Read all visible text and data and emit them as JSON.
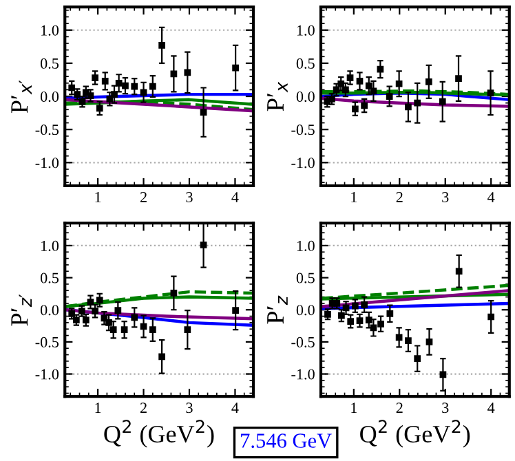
{
  "chart_data": [
    {
      "type": "scatter",
      "ylabel": "P′$_{x′}$",
      "xlim": [
        0.28,
        4.4
      ],
      "ylim": [
        -1.35,
        1.35
      ],
      "xticks": [
        1,
        2,
        3,
        4
      ],
      "yticks": [
        {
          "value": 1,
          "label": "1.0"
        },
        {
          "value": 0.5,
          "label": "0.5"
        },
        {
          "value": 0,
          "label": "0.0"
        },
        {
          "value": -0.5,
          "label": "-0.5"
        },
        {
          "value": -1,
          "label": "-1.0"
        }
      ],
      "ref_lines": [
        {
          "axis": "y",
          "value": 1,
          "color": "#aaaaaa",
          "line_style": "dotted"
        },
        {
          "axis": "y",
          "value": -1,
          "color": "#aaaaaa",
          "line_style": "dotted"
        }
      ],
      "series": [
        {
          "type": "line",
          "color": "#0000ff",
          "line_style": "solid",
          "x": [
            0.3,
            1,
            2,
            3,
            4.4
          ],
          "values": [
            -0.03,
            -0.01,
            0.01,
            0.03,
            0.03
          ]
        },
        {
          "type": "line",
          "color": "#008000",
          "line_style": "solid",
          "x": [
            0.3,
            1,
            2,
            3,
            4.4
          ],
          "values": [
            -0.12,
            -0.1,
            -0.07,
            -0.05,
            -0.12
          ]
        },
        {
          "type": "line",
          "color": "#008000",
          "line_style": "dashed",
          "x": [
            0.3,
            1,
            2,
            3,
            4.4
          ],
          "values": [
            -0.1,
            -0.09,
            -0.08,
            -0.12,
            -0.2
          ]
        },
        {
          "type": "line",
          "color": "#800080",
          "line_style": "solid",
          "x": [
            0.3,
            1,
            2,
            3,
            4.4
          ],
          "values": [
            -0.05,
            -0.08,
            -0.12,
            -0.16,
            -0.22
          ]
        },
        {
          "color": "#000000",
          "marker": "square",
          "x": [
            0.43,
            0.55,
            0.66,
            0.74,
            0.84,
            0.94,
            1.04,
            1.16,
            1.26,
            1.36,
            1.46,
            1.6,
            1.8,
            2.0,
            2.2,
            2.4,
            2.66,
            2.96,
            3.31,
            4.01
          ],
          "values": [
            0.13,
            0.03,
            -0.08,
            0.06,
            0.01,
            0.28,
            -0.18,
            0.23,
            -0.04,
            0.03,
            0.2,
            0.16,
            0.15,
            0.06,
            0.15,
            0.77,
            0.34,
            0.36,
            -0.24,
            0.43
          ],
          "errors": [
            0.1,
            0.08,
            0.08,
            0.09,
            0.09,
            0.1,
            0.1,
            0.13,
            0.1,
            0.13,
            0.13,
            0.12,
            0.12,
            0.15,
            0.16,
            0.27,
            0.27,
            0.31,
            0.37,
            0.34
          ]
        }
      ]
    },
    {
      "type": "scatter",
      "ylabel": "P′$_{x}$",
      "xlim": [
        0.28,
        4.4
      ],
      "ylim": [
        -1.35,
        1.35
      ],
      "xticks": [
        1,
        2,
        3,
        4
      ],
      "yticks": [
        {
          "value": 1,
          "label": "1.0"
        },
        {
          "value": 0.5,
          "label": "0.5"
        },
        {
          "value": 0,
          "label": "0.0"
        },
        {
          "value": -0.5,
          "label": "-0.5"
        },
        {
          "value": -1,
          "label": "-1.0"
        }
      ],
      "ref_lines": [
        {
          "axis": "y",
          "value": 1,
          "color": "#aaaaaa",
          "line_style": "dotted"
        },
        {
          "axis": "y",
          "value": -1,
          "color": "#aaaaaa",
          "line_style": "dotted"
        }
      ],
      "series": [
        {
          "type": "line",
          "color": "#0000ff",
          "line_style": "solid",
          "x": [
            0.3,
            1,
            2,
            3,
            3.5,
            4.4
          ],
          "values": [
            0.0,
            0.03,
            0.05,
            0.03,
            0.0,
            -0.05
          ]
        },
        {
          "type": "line",
          "color": "#008000",
          "line_style": "solid",
          "x": [
            0.3,
            1,
            2,
            2.5,
            3.5,
            4.4
          ],
          "values": [
            0.05,
            0.05,
            0.06,
            0.06,
            0.04,
            0.02
          ]
        },
        {
          "type": "line",
          "color": "#008000",
          "line_style": "dashed",
          "x": [
            0.3,
            1,
            2,
            2.5,
            3.5,
            4.4
          ],
          "values": [
            0.07,
            0.07,
            0.08,
            0.08,
            0.06,
            0.03
          ]
        },
        {
          "type": "line",
          "color": "#800080",
          "line_style": "solid",
          "x": [
            0.3,
            1,
            2,
            3,
            4.4
          ],
          "values": [
            -0.03,
            -0.07,
            -0.1,
            -0.13,
            -0.15
          ]
        },
        {
          "color": "#000000",
          "marker": "square",
          "x": [
            0.42,
            0.52,
            0.62,
            0.72,
            0.82,
            0.92,
            1.03,
            1.13,
            1.23,
            1.33,
            1.43,
            1.58,
            1.78,
            1.99,
            2.19,
            2.39,
            2.64,
            2.94,
            3.29,
            3.99
          ],
          "values": [
            -0.08,
            -0.04,
            0.1,
            0.19,
            0.1,
            0.28,
            -0.19,
            0.23,
            -0.14,
            0.16,
            0.08,
            0.41,
            0.0,
            0.19,
            -0.16,
            -0.1,
            0.22,
            -0.08,
            0.27,
            0.05
          ],
          "errors": [
            0.08,
            0.08,
            0.09,
            0.1,
            0.1,
            0.1,
            0.1,
            0.13,
            0.1,
            0.13,
            0.15,
            0.13,
            0.15,
            0.19,
            0.22,
            0.3,
            0.25,
            0.3,
            0.34,
            0.33
          ]
        }
      ]
    },
    {
      "type": "scatter",
      "ylabel": "P′$_{z′}$",
      "xlabel": "Q$^{2}$ (GeV$^{2}$)",
      "annotations": [
        "7.546 GeV"
      ],
      "xlim": [
        0.28,
        4.4
      ],
      "ylim": [
        -1.35,
        1.35
      ],
      "xticks": [
        1,
        2,
        3,
        4
      ],
      "yticks": [
        {
          "value": 1,
          "label": "1.0"
        },
        {
          "value": 0.5,
          "label": "0.5"
        },
        {
          "value": 0,
          "label": "0.0"
        },
        {
          "value": -0.5,
          "label": "-0.5"
        },
        {
          "value": -1,
          "label": "-1.0"
        }
      ],
      "ref_lines": [
        {
          "axis": "y",
          "value": 1,
          "color": "#aaaaaa",
          "line_style": "dotted"
        },
        {
          "axis": "y",
          "value": -1,
          "color": "#aaaaaa",
          "line_style": "dotted"
        }
      ],
      "series": [
        {
          "type": "line",
          "color": "#0000ff",
          "line_style": "solid",
          "x": [
            0.3,
            1,
            2,
            3,
            4.4
          ],
          "values": [
            0.0,
            -0.05,
            -0.12,
            -0.2,
            -0.24
          ]
        },
        {
          "type": "line",
          "color": "#008000",
          "line_style": "solid",
          "x": [
            0.3,
            1,
            2,
            3,
            4.4
          ],
          "values": [
            0.05,
            0.1,
            0.18,
            0.2,
            0.18
          ]
        },
        {
          "type": "line",
          "color": "#008000",
          "line_style": "dashed",
          "x": [
            0.3,
            1,
            2,
            3,
            4.4
          ],
          "values": [
            0.05,
            0.12,
            0.2,
            0.28,
            0.26
          ]
        },
        {
          "type": "line",
          "color": "#800080",
          "line_style": "solid",
          "x": [
            0.3,
            1,
            2.5,
            4.4
          ],
          "values": [
            0.0,
            -0.05,
            -0.1,
            -0.14
          ]
        },
        {
          "color": "#000000",
          "marker": "square",
          "x": [
            0.43,
            0.53,
            0.65,
            0.74,
            0.84,
            0.94,
            1.04,
            1.14,
            1.24,
            1.34,
            1.44,
            1.58,
            1.8,
            2.0,
            2.2,
            2.4,
            2.66,
            2.96,
            3.31,
            4.01
          ],
          "values": [
            -0.06,
            -0.16,
            -0.02,
            -0.16,
            0.12,
            -0.02,
            0.15,
            -0.13,
            -0.2,
            -0.31,
            -0.01,
            -0.31,
            -0.12,
            -0.26,
            -0.31,
            -0.73,
            0.26,
            -0.31,
            1.01,
            -0.01
          ],
          "errors": [
            0.08,
            0.08,
            0.08,
            0.09,
            0.1,
            0.1,
            0.1,
            0.1,
            0.12,
            0.13,
            0.13,
            0.13,
            0.15,
            0.17,
            0.18,
            0.26,
            0.26,
            0.3,
            0.35,
            0.3
          ]
        }
      ]
    },
    {
      "type": "scatter",
      "ylabel": "P′$_{z}$",
      "xlabel": "Q$^{2}$ (GeV$^{2}$)",
      "xlim": [
        0.28,
        4.4
      ],
      "ylim": [
        -1.35,
        1.35
      ],
      "xticks": [
        1,
        2,
        3,
        4
      ],
      "yticks": [
        {
          "value": 1,
          "label": "1.0"
        },
        {
          "value": 0.5,
          "label": "0.5"
        },
        {
          "value": 0,
          "label": "0.0"
        },
        {
          "value": -0.5,
          "label": "-0.5"
        },
        {
          "value": -1,
          "label": "-1.0"
        }
      ],
      "ref_lines": [
        {
          "axis": "y",
          "value": 1,
          "color": "#aaaaaa",
          "line_style": "dotted"
        },
        {
          "axis": "y",
          "value": -1,
          "color": "#aaaaaa",
          "line_style": "dotted"
        }
      ],
      "series": [
        {
          "type": "line",
          "color": "#0000ff",
          "line_style": "solid",
          "x": [
            0.3,
            4.4
          ],
          "values": [
            0.02,
            0.1
          ]
        },
        {
          "type": "line",
          "color": "#008000",
          "line_style": "solid",
          "x": [
            0.3,
            4.4
          ],
          "values": [
            0.17,
            0.24
          ]
        },
        {
          "type": "line",
          "color": "#008000",
          "line_style": "dashed",
          "x": [
            0.3,
            2,
            4.4
          ],
          "values": [
            0.18,
            0.26,
            0.38
          ]
        },
        {
          "type": "line",
          "color": "#800080",
          "line_style": "solid",
          "x": [
            0.3,
            4.4
          ],
          "values": [
            0.05,
            0.3
          ]
        },
        {
          "color": "#000000",
          "marker": "square",
          "x": [
            0.43,
            0.53,
            0.63,
            0.73,
            0.83,
            0.93,
            1.03,
            1.13,
            1.23,
            1.33,
            1.43,
            1.59,
            1.79,
            1.99,
            2.19,
            2.39,
            2.65,
            2.95,
            3.3,
            4.0
          ],
          "values": [
            -0.07,
            0.1,
            0.1,
            -0.09,
            0.03,
            -0.18,
            0.06,
            -0.17,
            0.08,
            -0.16,
            -0.28,
            -0.22,
            -0.06,
            -0.43,
            -0.48,
            -0.76,
            -0.5,
            -1.01,
            0.6,
            -0.11
          ],
          "errors": [
            0.08,
            0.08,
            0.08,
            0.09,
            0.1,
            0.1,
            0.1,
            0.1,
            0.12,
            0.12,
            0.13,
            0.12,
            0.13,
            0.15,
            0.17,
            0.2,
            0.2,
            0.25,
            0.25,
            0.25
          ]
        }
      ]
    }
  ]
}
